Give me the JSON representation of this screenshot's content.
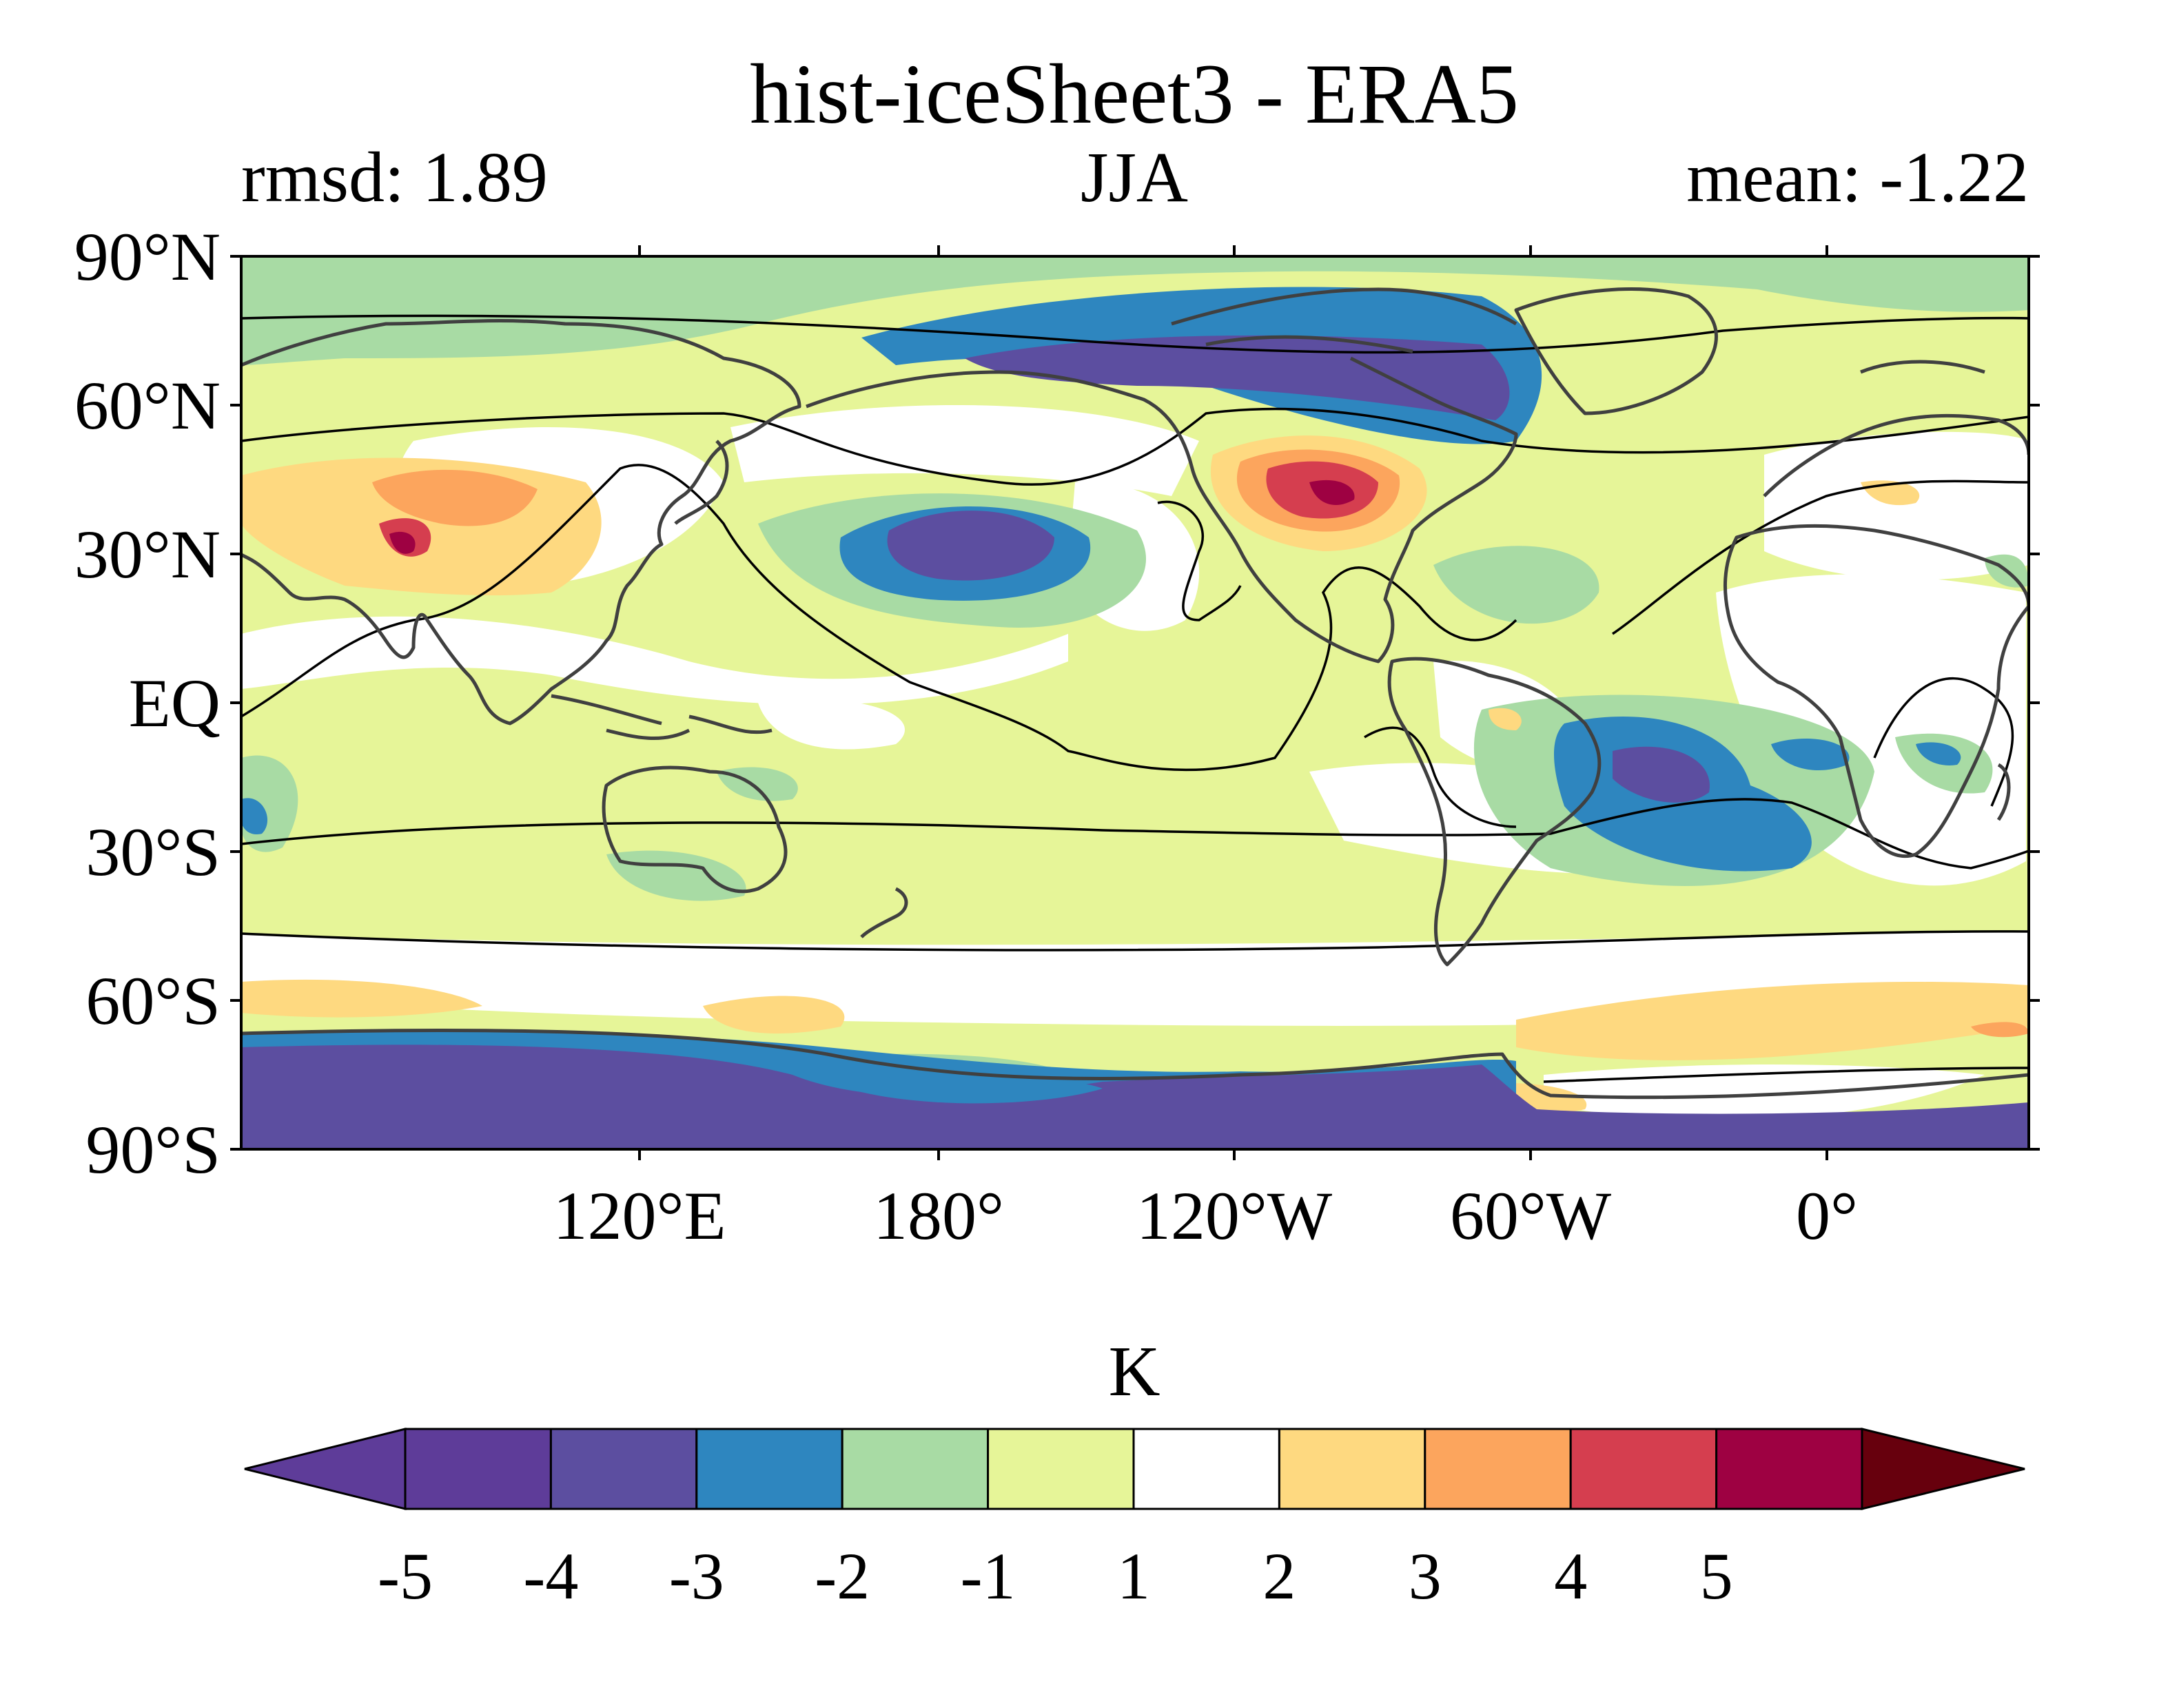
{
  "title": "hist-iceSheet3 - ERA5",
  "subtitle_left": "rmsd: 1.89",
  "subtitle_center": "JJA",
  "subtitle_right": "mean: -1.22",
  "map": {
    "lat_ticks": [
      "90°N",
      "60°N",
      "30°N",
      "EQ",
      "30°S",
      "60°S",
      "90°S"
    ],
    "lon_ticks": [
      "120°E",
      "180°",
      "120°W",
      "60°W",
      "0°"
    ],
    "projection": "equirectangular, centered ~150°W",
    "features": [
      "filled-contour-anomaly",
      "coastlines",
      "black-contour-lines"
    ]
  },
  "colorbar": {
    "units": "K",
    "levels": [
      "-5",
      "-4",
      "-3",
      "-2",
      "-1",
      "1",
      "2",
      "3",
      "4",
      "5"
    ],
    "colors": [
      "#5e3c99",
      "#5c4ea0",
      "#2e86bf",
      "#a8dba4",
      "#e6f598",
      "#ffffff",
      "#fed980",
      "#fca55d",
      "#d53e4f",
      "#9e0142"
    ],
    "under_color": "#5e3c99",
    "over_color": "#67000d",
    "extend": "both"
  }
}
